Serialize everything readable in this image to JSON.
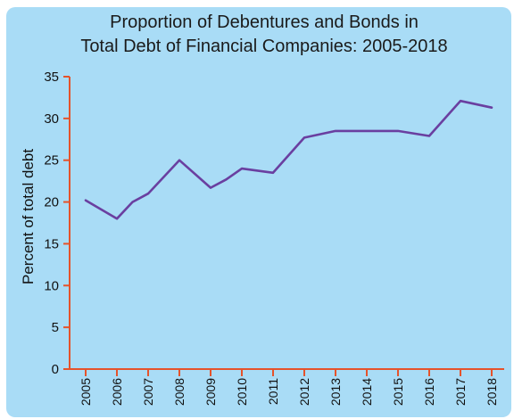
{
  "chart_data": {
    "type": "line",
    "title_lines": [
      "Proportion of Debentures and Bonds in",
      "Total Debt of Financial Companies: 2005-2018"
    ],
    "xlabel": "",
    "ylabel": "Percent of total debt",
    "ylim": [
      0,
      35
    ],
    "yticks": [
      "0",
      "5",
      "10",
      "15",
      "20",
      "25",
      "30",
      "35"
    ],
    "categories": [
      "2005",
      "2006",
      "2007",
      "2008",
      "2009",
      "2010",
      "2011",
      "2012",
      "2013",
      "2014",
      "2015",
      "2016",
      "2017",
      "2018"
    ],
    "points": [
      {
        "x": 2005.0,
        "y": 20.2
      },
      {
        "x": 2006.0,
        "y": 18.0
      },
      {
        "x": 2006.5,
        "y": 20.0
      },
      {
        "x": 2007.0,
        "y": 21.0
      },
      {
        "x": 2008.0,
        "y": 25.0
      },
      {
        "x": 2009.0,
        "y": 21.7
      },
      {
        "x": 2009.5,
        "y": 22.7
      },
      {
        "x": 2010.0,
        "y": 24.0
      },
      {
        "x": 2011.0,
        "y": 23.5
      },
      {
        "x": 2012.0,
        "y": 27.7
      },
      {
        "x": 2013.0,
        "y": 28.5
      },
      {
        "x": 2014.0,
        "y": 28.5
      },
      {
        "x": 2015.0,
        "y": 28.5
      },
      {
        "x": 2016.0,
        "y": 27.9
      },
      {
        "x": 2017.0,
        "y": 32.1
      },
      {
        "x": 2018.0,
        "y": 31.3
      }
    ],
    "grid": false,
    "colors": {
      "background": "#a9dcf6",
      "line": "#6a3fa0",
      "axis": "#e5532b"
    }
  }
}
